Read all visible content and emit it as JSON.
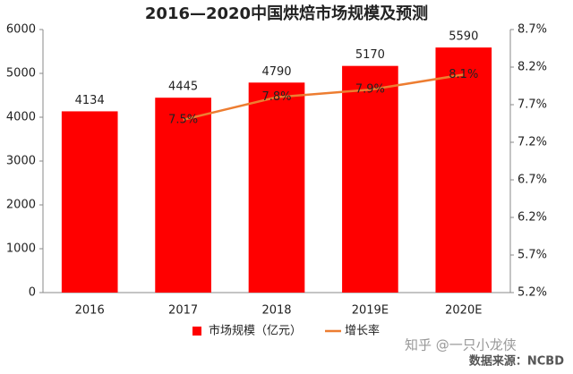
{
  "chart_data": {
    "type": "combo",
    "title": "2016—2020中国烘焙市场规模及预测",
    "categories": [
      "2016",
      "2017",
      "2018",
      "2019E",
      "2020E"
    ],
    "series": [
      {
        "name": "市场规模（亿元）",
        "type": "bar",
        "color": "#ff0000",
        "values": [
          4134,
          4445,
          4790,
          5170,
          5590
        ]
      },
      {
        "name": "增长率",
        "type": "line",
        "axis": "y2",
        "color": "#ed7d31",
        "values": [
          null,
          7.5,
          7.8,
          7.9,
          8.1
        ],
        "value_labels": [
          null,
          "7.5%",
          "7.8%",
          "7.9%",
          "8.1%"
        ]
      }
    ],
    "ylim": [
      0,
      6000
    ],
    "yticks": [
      0,
      1000,
      2000,
      3000,
      4000,
      5000,
      6000
    ],
    "y2lim": [
      5.2,
      8.7
    ],
    "y2ticks": [
      {
        "value": 5.2,
        "label": "5.2%"
      },
      {
        "value": 5.7,
        "label": "5.7%"
      },
      {
        "value": 6.2,
        "label": "6.2%"
      },
      {
        "value": 6.7,
        "label": "6.7%"
      },
      {
        "value": 7.2,
        "label": "7.2%"
      },
      {
        "value": 7.7,
        "label": "7.7%"
      },
      {
        "value": 8.2,
        "label": "8.2%"
      },
      {
        "value": 8.7,
        "label": "8.7%"
      }
    ],
    "grid": false,
    "legend": "bottom",
    "source": "数据来源：NCBD",
    "watermark": "知乎 @一只小龙侠"
  }
}
